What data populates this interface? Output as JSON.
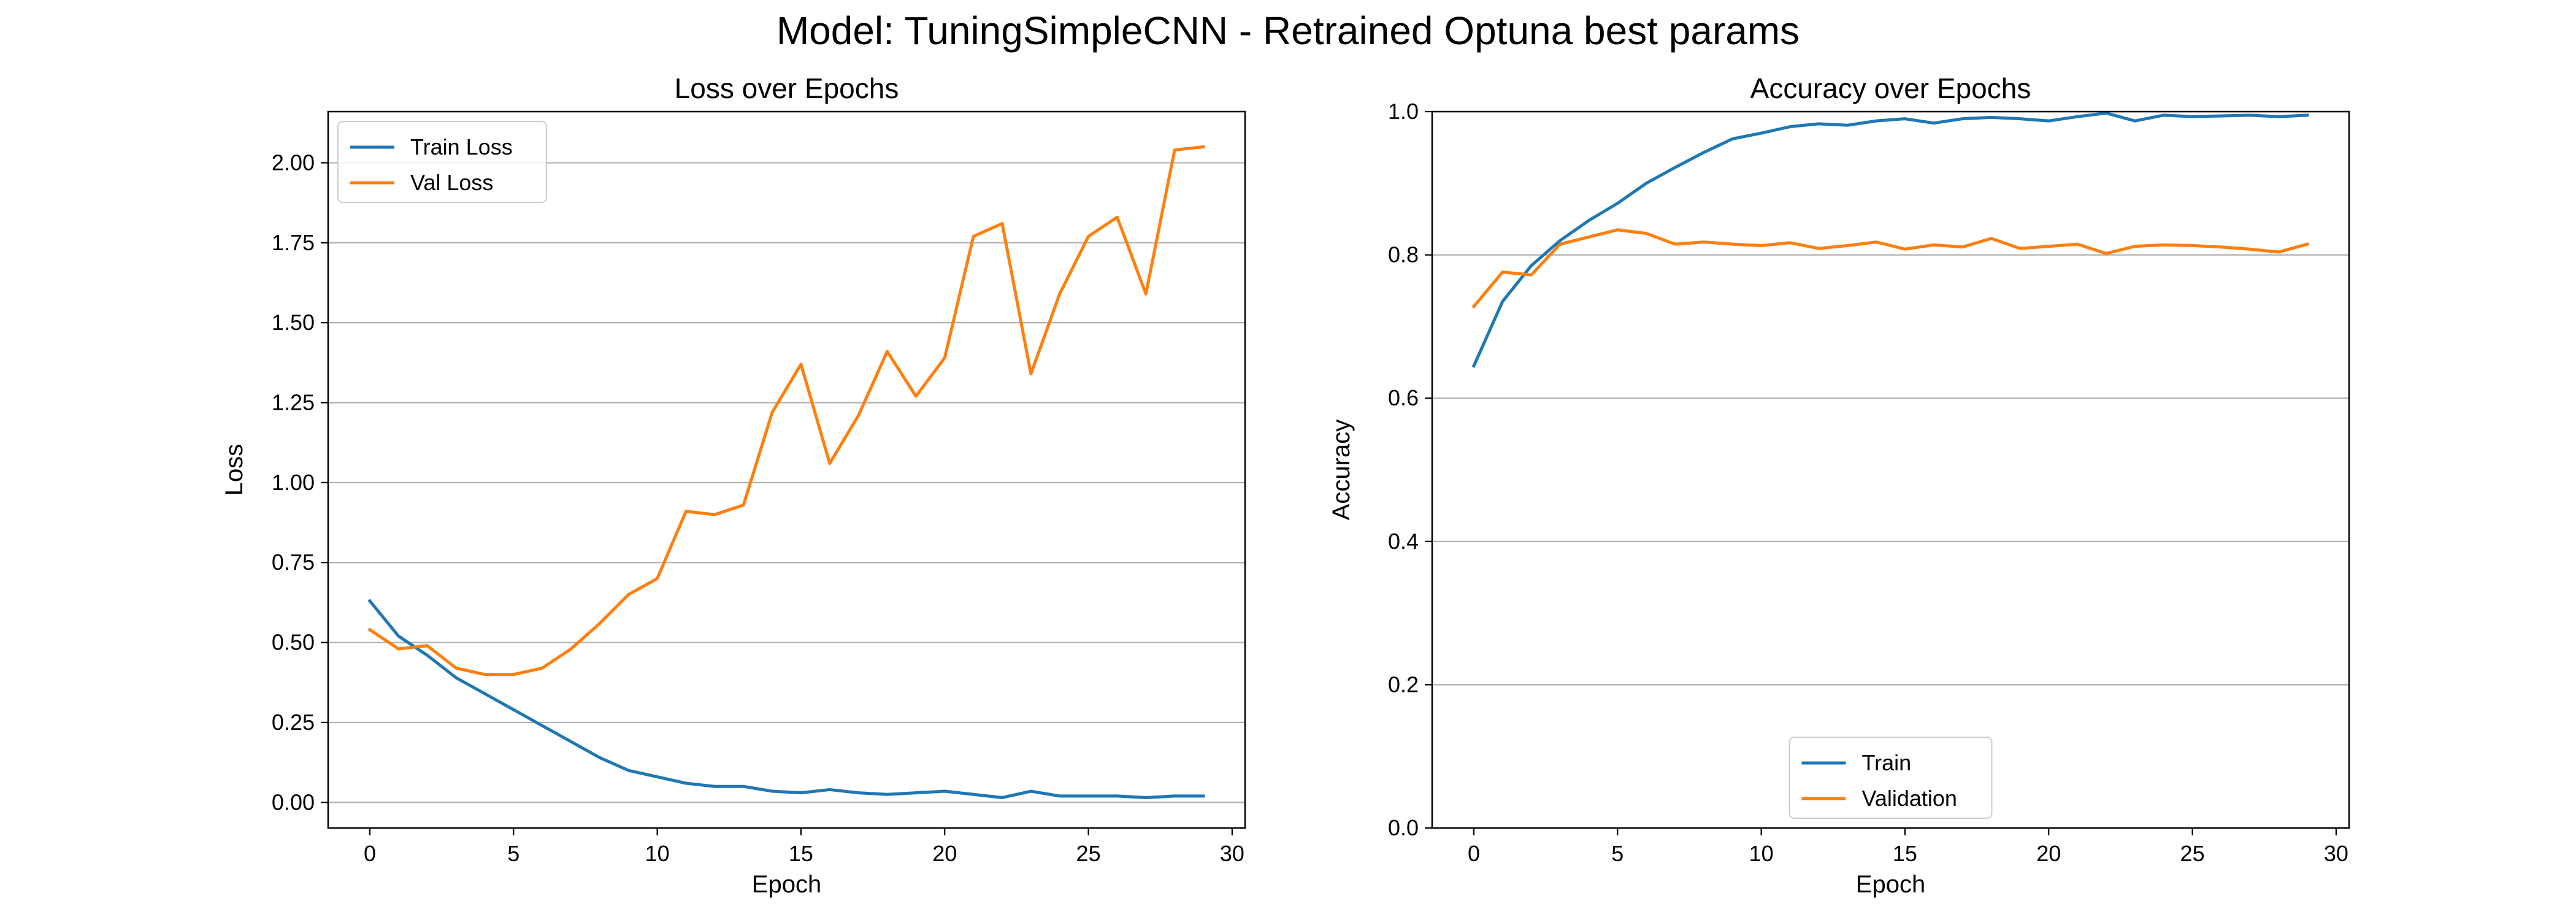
{
  "figure": {
    "title": "Model: TuningSimpleCNN - Retrained Optuna best params"
  },
  "chart_data": [
    {
      "type": "line",
      "title": "Loss over Epochs",
      "xlabel": "Epoch",
      "ylabel": "Loss",
      "xlim": [
        -1.45,
        30.45
      ],
      "ylim": [
        -0.08,
        2.16
      ],
      "xticks": [
        0,
        5,
        10,
        15,
        20,
        25,
        30
      ],
      "yticks": [
        0.0,
        0.25,
        0.5,
        0.75,
        1.0,
        1.25,
        1.5,
        1.75,
        2.0
      ],
      "ytick_labels": [
        "0.00",
        "0.25",
        "0.50",
        "0.75",
        "1.00",
        "1.25",
        "1.50",
        "1.75",
        "2.00"
      ],
      "grid": "y",
      "legend": "upper left",
      "x": [
        0,
        1,
        2,
        3,
        4,
        5,
        6,
        7,
        8,
        9,
        10,
        11,
        12,
        13,
        14,
        15,
        16,
        17,
        18,
        19,
        20,
        21,
        22,
        23,
        24,
        25,
        26,
        27,
        28,
        29
      ],
      "series": [
        {
          "name": "Train Loss",
          "color": "#1f77b4",
          "values": [
            0.63,
            0.52,
            0.46,
            0.39,
            0.34,
            0.29,
            0.24,
            0.19,
            0.14,
            0.1,
            0.08,
            0.06,
            0.05,
            0.05,
            0.035,
            0.03,
            0.04,
            0.03,
            0.025,
            0.03,
            0.035,
            0.025,
            0.015,
            0.035,
            0.02,
            0.02,
            0.02,
            0.015,
            0.02,
            0.02
          ]
        },
        {
          "name": "Val Loss",
          "color": "#ff7f0e",
          "values": [
            0.54,
            0.48,
            0.49,
            0.42,
            0.4,
            0.4,
            0.42,
            0.48,
            0.56,
            0.65,
            0.7,
            0.91,
            0.9,
            0.93,
            1.22,
            1.37,
            1.06,
            1.21,
            1.41,
            1.27,
            1.39,
            1.77,
            1.81,
            1.34,
            1.59,
            1.77,
            1.83,
            1.59,
            2.04,
            2.05
          ]
        }
      ]
    },
    {
      "type": "line",
      "title": "Accuracy over Epochs",
      "xlabel": "Epoch",
      "ylabel": "Accuracy",
      "xlim": [
        -1.45,
        30.45
      ],
      "ylim": [
        0.0,
        1.0
      ],
      "xticks": [
        0,
        5,
        10,
        15,
        20,
        25,
        30
      ],
      "yticks": [
        0.0,
        0.2,
        0.4,
        0.6,
        0.8,
        1.0
      ],
      "ytick_labels": [
        "0.0",
        "0.2",
        "0.4",
        "0.6",
        "0.8",
        "1.0"
      ],
      "grid": "y",
      "legend": "lower center",
      "x": [
        0,
        1,
        2,
        3,
        4,
        5,
        6,
        7,
        8,
        9,
        10,
        11,
        12,
        13,
        14,
        15,
        16,
        17,
        18,
        19,
        20,
        21,
        22,
        23,
        24,
        25,
        26,
        27,
        28,
        29
      ],
      "series": [
        {
          "name": "Train",
          "color": "#1f77b4",
          "values": [
            0.645,
            0.735,
            0.785,
            0.82,
            0.848,
            0.872,
            0.9,
            0.922,
            0.943,
            0.962,
            0.97,
            0.979,
            0.983,
            0.981,
            0.987,
            0.99,
            0.984,
            0.99,
            0.992,
            0.99,
            0.987,
            0.993,
            0.998,
            0.987,
            0.995,
            0.993,
            0.994,
            0.995,
            0.993,
            0.995
          ]
        },
        {
          "name": "Validation",
          "color": "#ff7f0e",
          "values": [
            0.728,
            0.776,
            0.772,
            0.815,
            0.825,
            0.835,
            0.83,
            0.815,
            0.818,
            0.815,
            0.813,
            0.817,
            0.809,
            0.813,
            0.818,
            0.808,
            0.814,
            0.811,
            0.823,
            0.809,
            0.812,
            0.815,
            0.802,
            0.812,
            0.814,
            0.813,
            0.811,
            0.808,
            0.804,
            0.815
          ]
        }
      ]
    }
  ]
}
